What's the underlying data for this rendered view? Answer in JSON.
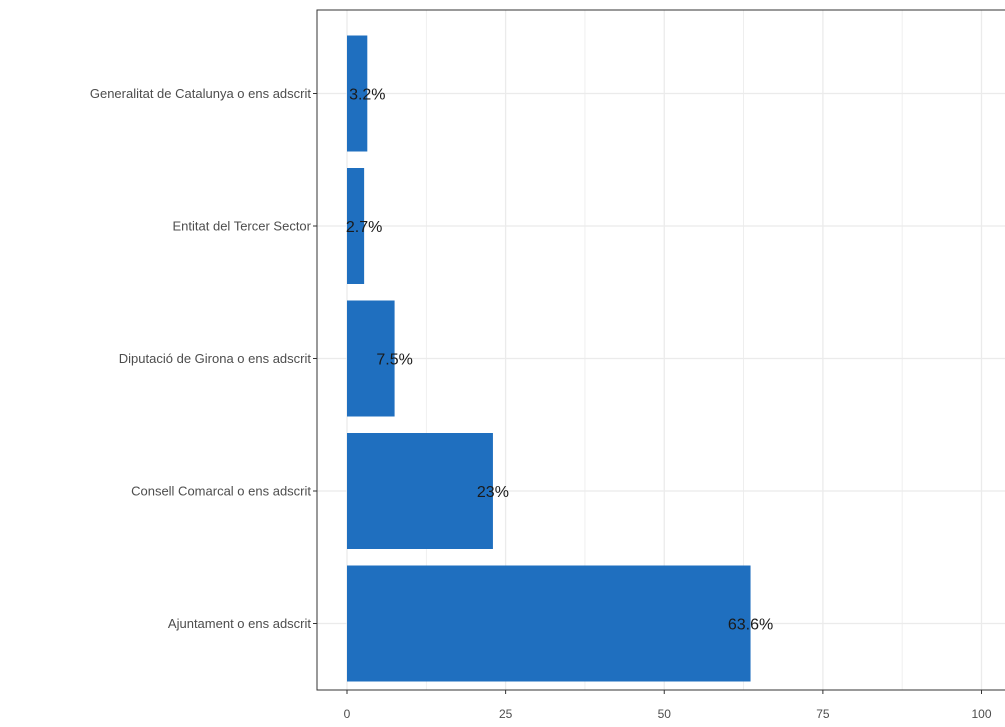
{
  "chart_data": {
    "type": "bar",
    "orientation": "horizontal",
    "categories": [
      "Generalitat de Catalunya o ens adscrit",
      "Entitat del Tercer Sector",
      "Diputació de Girona o ens adscrit",
      "Consell Comarcal o ens adscrit",
      "Ajuntament o ens adscrit"
    ],
    "values": [
      3.2,
      2.7,
      7.5,
      23,
      63.6
    ],
    "data_labels": [
      "3.2%",
      "2.7%",
      "7.5%",
      "23%",
      "63.6%"
    ],
    "xlim": [
      0,
      100
    ],
    "x_ticks": [
      0,
      25,
      50,
      75,
      100
    ],
    "x_tick_labels": [
      "0",
      "25",
      "50",
      "75",
      "100"
    ],
    "title": "",
    "xlabel": "",
    "ylabel": "",
    "grid": true,
    "legend": "none",
    "bar_color": "#1f6fbf",
    "grid_color": "#ebebeb",
    "panel_border_color": "#333333"
  }
}
